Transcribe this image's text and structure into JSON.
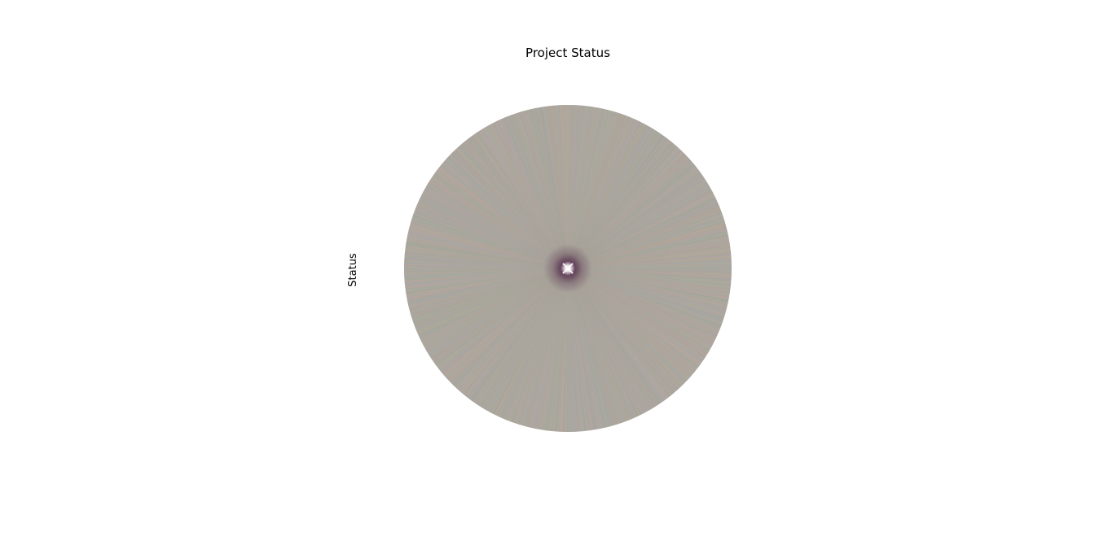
{
  "chart_data": {
    "type": "pie",
    "title": "Project Status",
    "ylabel": "Status",
    "slice_count": 3000,
    "values": "equal",
    "legend": "none",
    "slice_labels": "none",
    "colors": {
      "dominant_tone": "#a9a59b",
      "palette": [
        "#c9a79e",
        "#9fb4a2",
        "#b6a4b3",
        "#a7aab0",
        "#b8ad97",
        "#a3a39a"
      ],
      "center_tone": "#5a3552"
    }
  }
}
